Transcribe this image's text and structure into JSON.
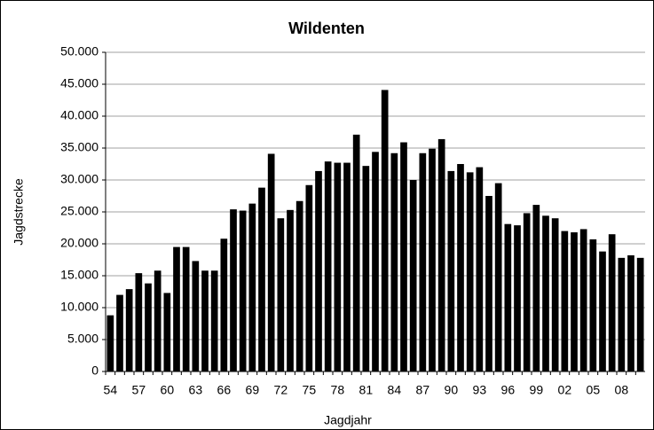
{
  "chart_data": {
    "type": "bar",
    "title": "Wildenten",
    "x_label": "Jagdjahr",
    "y_label": "Jagdstrecke",
    "categories": [
      "54",
      null,
      null,
      "57",
      null,
      null,
      "60",
      null,
      null,
      "63",
      null,
      null,
      "66",
      null,
      null,
      "69",
      null,
      null,
      "72",
      null,
      null,
      "75",
      null,
      null,
      "78",
      null,
      null,
      "81",
      null,
      null,
      "84",
      null,
      null,
      "87",
      null,
      null,
      "90",
      null,
      null,
      "93",
      null,
      null,
      "96",
      null,
      null,
      "99",
      null,
      null,
      "02",
      null,
      null,
      "05",
      null,
      null,
      "08",
      null,
      null
    ],
    "values": [
      8800,
      12000,
      12900,
      15400,
      13800,
      15800,
      12300,
      19500,
      19500,
      17300,
      15800,
      15800,
      20800,
      25400,
      25200,
      26300,
      28800,
      34100,
      24000,
      25300,
      26700,
      29200,
      31400,
      32900,
      32700,
      32700,
      37100,
      32200,
      34400,
      44100,
      34200,
      35900,
      30000,
      34200,
      34900,
      36400,
      31400,
      32500,
      31200,
      32000,
      27500,
      29500,
      23100,
      22900,
      24800,
      26100,
      24400,
      24000,
      22000,
      21800,
      22300,
      20700,
      18800,
      21500,
      17800,
      18200,
      17800
    ],
    "color": "#000000",
    "ylim": [
      0,
      50000
    ],
    "yticks": [
      0,
      {
        "value": 5000,
        "label": "5.000"
      },
      {
        "value": 10000,
        "label": "10.000"
      },
      {
        "value": 15000,
        "label": "15.000"
      },
      {
        "value": 20000,
        "label": "20.000"
      },
      {
        "value": 25000,
        "label": "25.000"
      },
      {
        "value": 30000,
        "label": "30.000"
      },
      {
        "value": 35000,
        "label": "35.000"
      },
      {
        "value": 40000,
        "label": "40.000"
      },
      {
        "value": 45000,
        "label": "45.000"
      },
      {
        "value": 50000,
        "label": "50.000"
      }
    ],
    "grid": true
  }
}
